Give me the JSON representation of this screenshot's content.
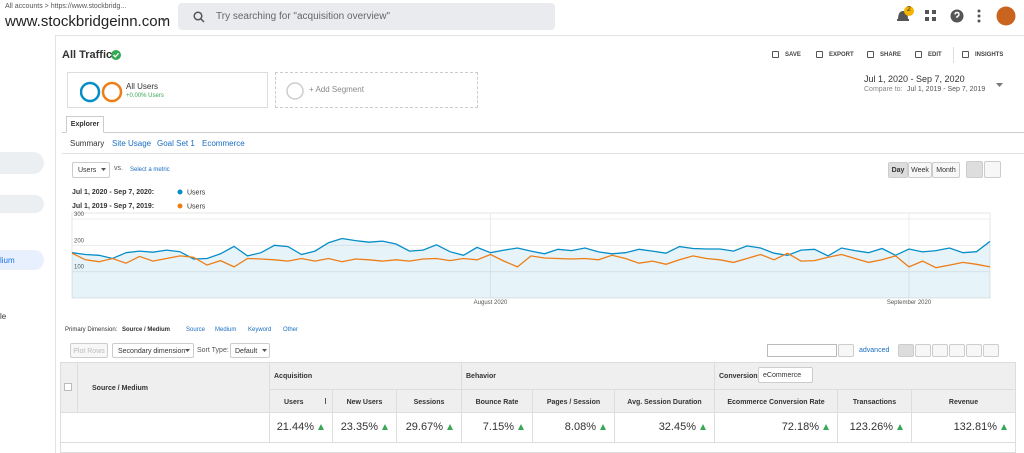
{
  "header": {
    "breadcrumb": "All accounts > https://www.stockbridg...",
    "property": "www.stockbridgeinn.com",
    "search_placeholder": "Try searching for \"acquisition overview\"",
    "notification_count": "2"
  },
  "sidebar": {
    "items": [
      "lium",
      "le"
    ]
  },
  "report": {
    "title": "All Traffic",
    "actions": [
      "SAVE",
      "EXPORT",
      "SHARE",
      "EDIT",
      "INSIGHTS"
    ],
    "segments": {
      "name": "All Users",
      "detail": "+0.00% Users",
      "add": "+ Add Segment"
    },
    "date_range": {
      "current": "Jul 1, 2020 - Sep 7, 2020",
      "compare_label": "Compare to:",
      "compare": "Jul 1, 2019 - Sep 7, 2019"
    },
    "tab": "Explorer",
    "subtabs": [
      "Summary",
      "Site Usage",
      "Goal Set 1",
      "Ecommerce"
    ],
    "metric": {
      "selected": "Users",
      "vs": "vs.",
      "select": "Select a metric"
    },
    "granularity": [
      "Day",
      "Week",
      "Month"
    ]
  },
  "chart_data": {
    "type": "line",
    "categories": [
      null,
      null,
      null,
      null,
      null,
      null,
      null,
      null,
      null,
      null,
      null,
      null,
      null,
      null,
      null,
      null,
      null,
      null,
      null,
      null,
      null,
      null,
      null,
      null,
      null,
      null,
      null,
      null,
      null,
      null,
      null,
      "August 2020",
      null,
      null,
      null,
      null,
      null,
      null,
      null,
      null,
      null,
      null,
      null,
      null,
      null,
      null,
      null,
      null,
      null,
      null,
      null,
      null,
      null,
      null,
      null,
      null,
      null,
      null,
      null,
      null,
      null,
      null,
      "September 2020",
      null,
      null,
      null,
      null,
      null,
      null
    ],
    "series": [
      {
        "name": "Users",
        "period": "Jul 1, 2020 - Sep 7, 2020:",
        "color": "#058dc7",
        "area": true,
        "values": [
          172,
          165,
          162,
          150,
          172,
          178,
          174,
          182,
          176,
          148,
          150,
          168,
          196,
          160,
          172,
          200,
          195,
          165,
          178,
          210,
          226,
          218,
          212,
          216,
          205,
          178,
          182,
          202,
          176,
          162,
          192,
          172,
          182,
          190,
          178,
          168,
          185,
          180,
          190,
          175,
          168,
          172,
          185,
          178,
          170,
          195,
          188,
          186,
          186,
          178,
          198,
          190,
          170,
          162,
          182,
          185,
          160,
          190,
          180,
          172,
          188,
          162,
          186,
          175,
          180,
          190,
          172,
          176,
          215
        ]
      },
      {
        "name": "Users",
        "period": "Jul 1, 2019 - Sep 7, 2019:",
        "color": "#ed7e17",
        "area": false,
        "values": [
          170,
          145,
          138,
          150,
          132,
          158,
          140,
          150,
          160,
          155,
          125,
          142,
          118,
          150,
          148,
          145,
          140,
          150,
          140,
          150,
          138,
          148,
          145,
          140,
          145,
          140,
          148,
          150,
          142,
          150,
          145,
          165,
          140,
          118,
          160,
          152,
          150,
          148,
          150,
          145,
          162,
          150,
          132,
          140,
          128,
          145,
          160,
          150,
          145,
          135,
          150,
          165,
          145,
          170,
          140,
          142,
          155,
          165,
          150,
          135,
          145,
          160,
          118,
          140,
          115,
          125,
          135,
          128,
          118
        ]
      }
    ],
    "ylim": [
      0,
      300
    ],
    "yticks": [
      100,
      200,
      300
    ],
    "grid": true
  },
  "dimensions": {
    "label": "Primary Dimension:",
    "items": [
      "Source / Medium",
      "Source",
      "Medium",
      "Keyword",
      "Other"
    ]
  },
  "toolbar": {
    "plot_rows": "Plot Rows",
    "secondary": "Secondary dimension",
    "sort_label": "Sort Type:",
    "sort": "Default",
    "advanced": "advanced"
  },
  "table": {
    "groups": [
      "Acquisition",
      "Behavior",
      "Conversions"
    ],
    "conversions_select": "eCommerce",
    "columns": [
      "Source / Medium",
      "Users",
      "New Users",
      "Sessions",
      "Bounce Rate",
      "Pages / Session",
      "Avg. Session Duration",
      "Ecommerce Conversion Rate",
      "Transactions",
      "Revenue"
    ],
    "totals": [
      "21.44%",
      "23.35%",
      "29.67%",
      "7.15%",
      "8.08%",
      "32.45%",
      "72.18%",
      "123.26%",
      "132.81%"
    ]
  }
}
